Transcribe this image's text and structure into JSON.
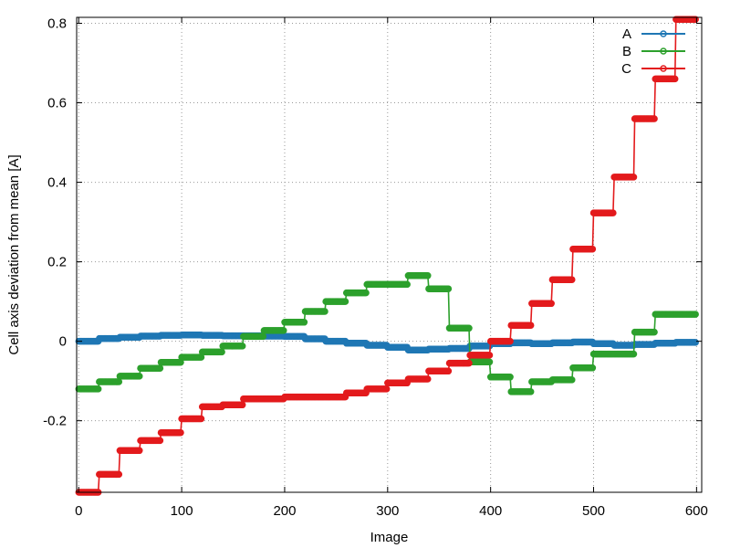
{
  "chart_data": {
    "type": "line",
    "xlabel": "Image",
    "ylabel": "Cell axis deviation from mean [A]",
    "xlim": [
      -2,
      605
    ],
    "ylim": [
      -0.38,
      0.815
    ],
    "x_ticks": [
      0,
      100,
      200,
      300,
      400,
      500,
      600
    ],
    "y_ticks": [
      -0.2,
      0,
      0.2,
      0.4,
      0.6,
      0.8
    ],
    "x_tick_labels": [
      "0",
      "100",
      "200",
      "300",
      "400",
      "500",
      "600"
    ],
    "y_tick_labels": [
      "-0.2",
      "0",
      "0.2",
      "0.4",
      "0.6",
      "0.8"
    ],
    "grid": true,
    "legend_position": "top-right",
    "marker": "circle",
    "step_width": 20,
    "series": [
      {
        "name": "A",
        "color": "#1f77b4",
        "values": [
          0.0,
          0.007,
          0.01,
          0.013,
          0.015,
          0.016,
          0.015,
          0.014,
          0.014,
          0.013,
          0.012,
          0.006,
          0.0,
          -0.005,
          -0.01,
          -0.015,
          -0.022,
          -0.02,
          -0.018,
          -0.012,
          -0.006,
          -0.004,
          -0.006,
          -0.004,
          -0.002,
          -0.006,
          -0.01,
          -0.008,
          -0.005,
          -0.003
        ]
      },
      {
        "name": "B",
        "color": "#2ca02c",
        "values": [
          -0.12,
          -0.102,
          -0.088,
          -0.068,
          -0.053,
          -0.04,
          -0.027,
          -0.012,
          0.012,
          0.027,
          0.048,
          0.075,
          0.1,
          0.122,
          0.143,
          0.143,
          0.165,
          0.132,
          0.033,
          -0.052,
          -0.09,
          -0.127,
          -0.102,
          -0.097,
          -0.067,
          -0.032,
          -0.032,
          0.023,
          0.068,
          0.068
        ]
      },
      {
        "name": "C",
        "color": "#e31a1c",
        "values": [
          -0.38,
          -0.335,
          -0.275,
          -0.25,
          -0.23,
          -0.195,
          -0.165,
          -0.16,
          -0.145,
          -0.145,
          -0.14,
          -0.14,
          -0.14,
          -0.13,
          -0.12,
          -0.105,
          -0.095,
          -0.075,
          -0.055,
          -0.035,
          0.0,
          0.04,
          0.095,
          0.155,
          0.232,
          0.323,
          0.413,
          0.56,
          0.66,
          0.81
        ]
      }
    ]
  }
}
